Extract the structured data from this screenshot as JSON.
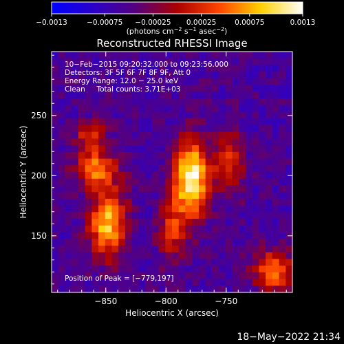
{
  "chart_data": {
    "type": "heatmap",
    "title": "Reconstructed RHESSI Image",
    "xlabel": "Heliocentric X (arcsec)",
    "ylabel": "Heliocentric Y (arcsec)",
    "xlim": [
      -895,
      -695
    ],
    "ylim": [
      103,
      303
    ],
    "x_ticks": [
      -850,
      -800,
      -750
    ],
    "x_tick_labels": [
      "−850",
      "−800",
      "−750"
    ],
    "y_ticks": [
      150,
      200,
      250
    ],
    "y_tick_labels": [
      "150",
      "200",
      "250"
    ],
    "colorbar": {
      "range": [
        -0.0013,
        0.0013
      ],
      "ticks": [
        -0.0013,
        -0.00075,
        -0.00025,
        0.00025,
        0.00075,
        0.0013
      ],
      "tick_labels": [
        "−0.0013",
        "−0.00075",
        "−0.00025",
        "0.00025",
        "0.00075",
        "0.0013"
      ],
      "label_main": "(photons cm",
      "label_exp1": "−2",
      "label_mid1": " s",
      "label_exp2": "−1",
      "label_mid2": " asec",
      "label_exp3": "−2",
      "label_end": ")",
      "stops": [
        "#0000ff",
        "#2b00c8",
        "#55007f",
        "#aa0000",
        "#ff4500",
        "#ffd000",
        "#ffffff"
      ]
    },
    "info_lines": [
      "10−Feb−2015 09:20:32.000 to 09:23:56.000",
      "Detectors: 3F 5F 6F 7F 8F 9F, Att 0",
      "Energy Range: 12.0 − 25.0 keV",
      "Clean     Total counts: 3.71E+03"
    ],
    "peak_text": "Position of Peak = [−779,197]",
    "sources": [
      {
        "x": -779,
        "y": 197,
        "sx": 10,
        "sy": 22,
        "amp": 1.0
      },
      {
        "x": -848,
        "y": 160,
        "sx": 11,
        "sy": 20,
        "amp": 0.78
      },
      {
        "x": -858,
        "y": 205,
        "sx": 12,
        "sy": 10,
        "amp": 0.62
      },
      {
        "x": -862,
        "y": 232,
        "sx": 9,
        "sy": 9,
        "amp": 0.45
      },
      {
        "x": -748,
        "y": 210,
        "sx": 8,
        "sy": 18,
        "amp": 0.5
      },
      {
        "x": -710,
        "y": 120,
        "sx": 12,
        "sy": 12,
        "amp": 0.62
      },
      {
        "x": -795,
        "y": 155,
        "sx": 8,
        "sy": 18,
        "amp": 0.42
      }
    ]
  },
  "timestamp": "18−May−2022 21:34"
}
